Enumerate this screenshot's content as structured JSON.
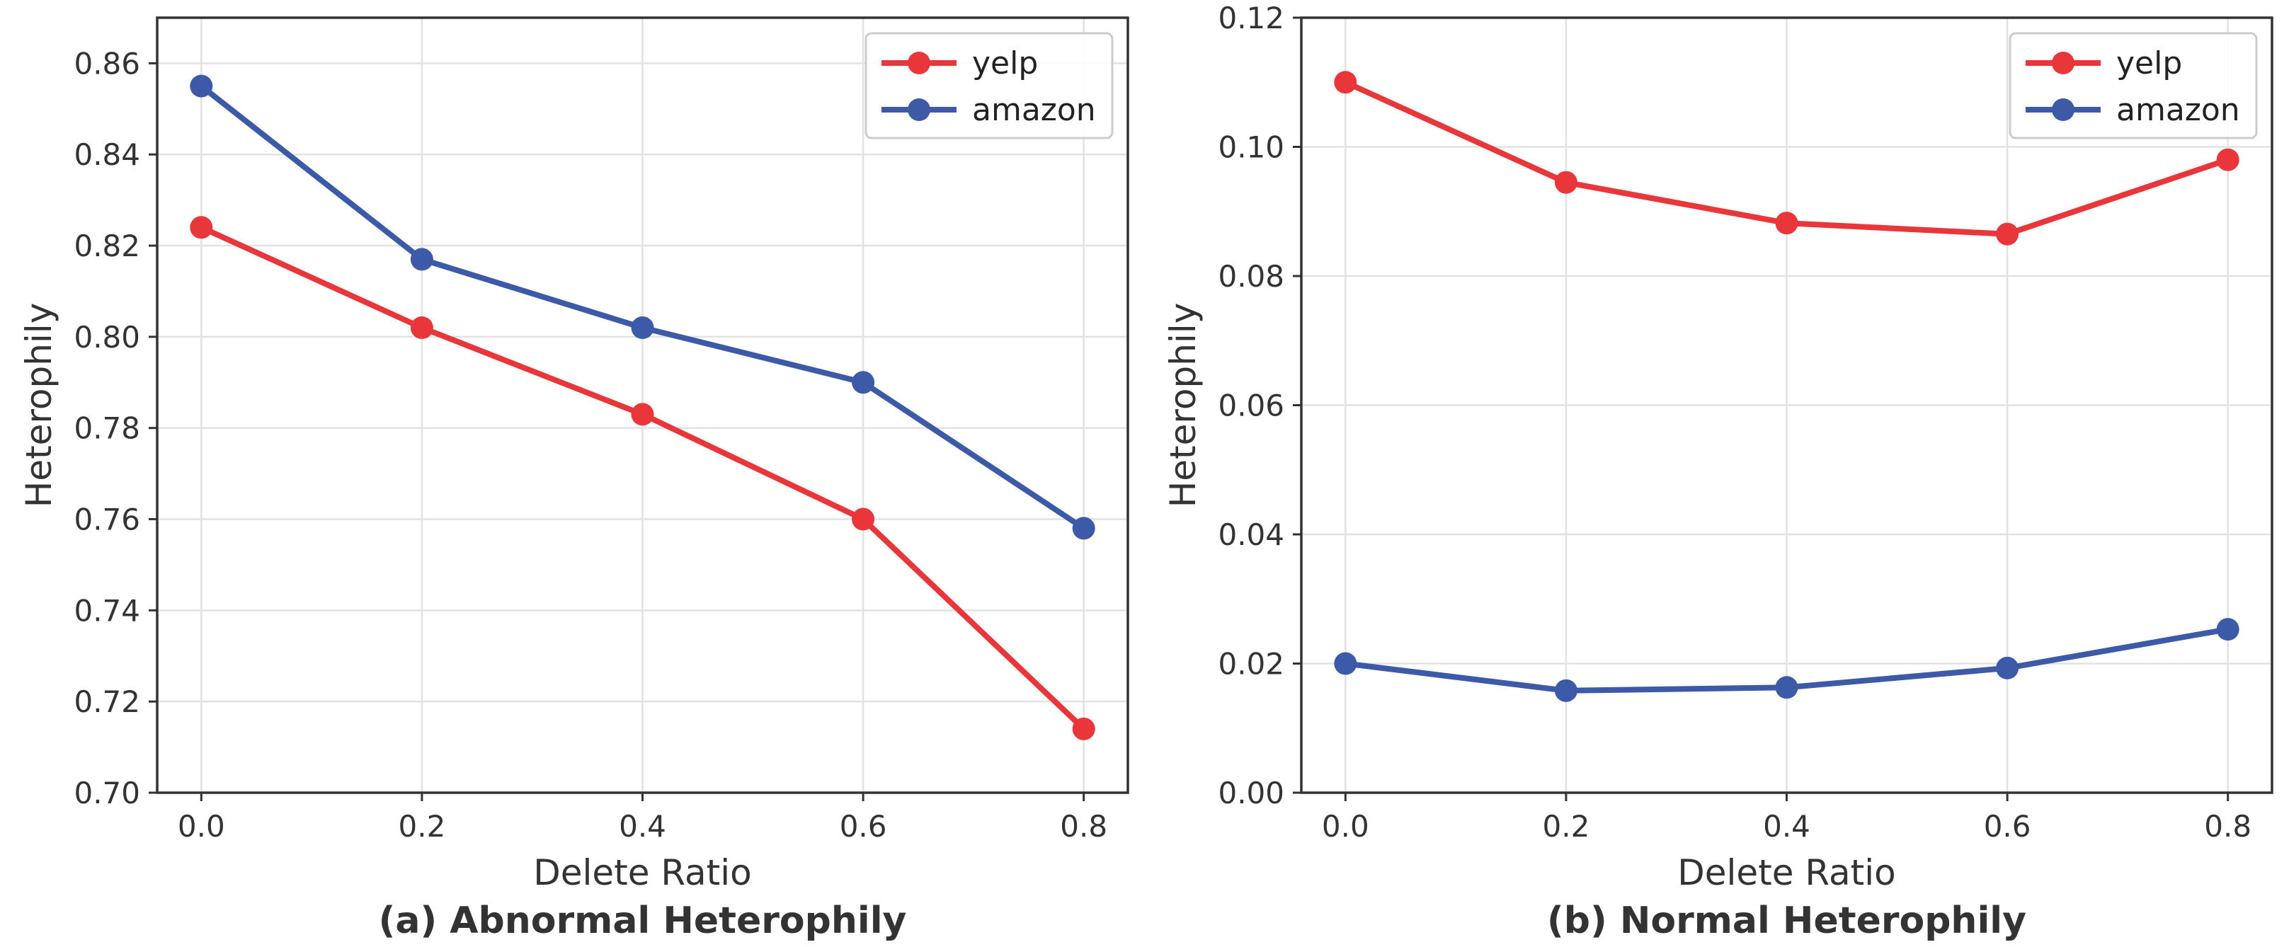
{
  "chart_data": [
    {
      "type": "line",
      "title": "(a) Abnormal Heterophily",
      "xlabel": "Delete Ratio",
      "ylabel": "Heterophily",
      "x": [
        0.0,
        0.2,
        0.4,
        0.6,
        0.8
      ],
      "xticks": [
        "0.0",
        "0.2",
        "0.4",
        "0.6",
        "0.8"
      ],
      "xlim": [
        -0.04,
        0.84
      ],
      "ylim": [
        0.7,
        0.87
      ],
      "yticks": [
        "0.70",
        "0.72",
        "0.74",
        "0.76",
        "0.78",
        "0.80",
        "0.82",
        "0.84",
        "0.86"
      ],
      "ytick_values": [
        0.7,
        0.72,
        0.74,
        0.76,
        0.78,
        0.8,
        0.82,
        0.84,
        0.86
      ],
      "grid": true,
      "legend_position": "top-right",
      "series": [
        {
          "name": "yelp",
          "color": "#e8363a",
          "values": [
            0.824,
            0.802,
            0.783,
            0.76,
            0.714
          ]
        },
        {
          "name": "amazon",
          "color": "#3d5aa8",
          "values": [
            0.855,
            0.817,
            0.802,
            0.79,
            0.758
          ]
        }
      ]
    },
    {
      "type": "line",
      "title": "(b) Normal Heterophily",
      "xlabel": "Delete Ratio",
      "ylabel": "Heterophily",
      "x": [
        0.0,
        0.2,
        0.4,
        0.6,
        0.8
      ],
      "xticks": [
        "0.0",
        "0.2",
        "0.4",
        "0.6",
        "0.8"
      ],
      "xlim": [
        -0.04,
        0.84
      ],
      "ylim": [
        0.0,
        0.12
      ],
      "yticks": [
        "0.00",
        "0.02",
        "0.04",
        "0.06",
        "0.08",
        "0.10",
        "0.12"
      ],
      "ytick_values": [
        0.0,
        0.02,
        0.04,
        0.06,
        0.08,
        0.1,
        0.12
      ],
      "grid": true,
      "legend_position": "top-right",
      "series": [
        {
          "name": "yelp",
          "color": "#e8363a",
          "values": [
            0.11,
            0.0945,
            0.0882,
            0.0865,
            0.098
          ]
        },
        {
          "name": "amazon",
          "color": "#3d5aa8",
          "values": [
            0.02,
            0.0158,
            0.0163,
            0.0193,
            0.0253
          ]
        }
      ]
    }
  ]
}
